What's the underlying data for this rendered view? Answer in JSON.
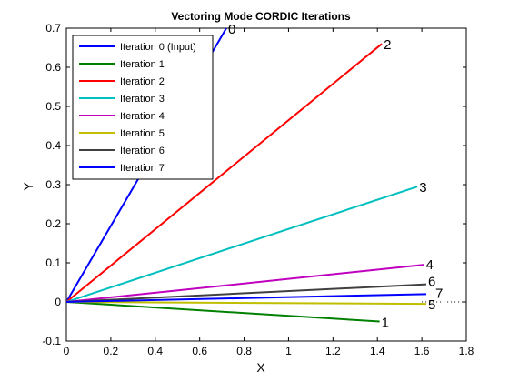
{
  "chart_data": {
    "type": "line",
    "title": "Vectoring Mode CORDIC Iterations",
    "xlabel": "X",
    "ylabel": "Y",
    "xlim": [
      0,
      1.8
    ],
    "ylim": [
      -0.1,
      0.7
    ],
    "xticks": [
      "0",
      "0.2",
      "0.4",
      "0.6",
      "0.8",
      "1",
      "1.2",
      "1.4",
      "1.6",
      "1.8"
    ],
    "yticks": [
      "-0.1",
      "0",
      "0.1",
      "0.2",
      "0.3",
      "0.4",
      "0.5",
      "0.6",
      "0.7"
    ],
    "grid": false,
    "legend_position": "top-left",
    "reference_line": {
      "y": 0,
      "style": "dotted",
      "x_from": 1.6,
      "x_to": 1.8
    },
    "series": [
      {
        "name": "Iteration 0 (Input)",
        "color": "#0000ff",
        "x": [
          0,
          0.72
        ],
        "y": [
          0,
          0.7
        ],
        "label": "0"
      },
      {
        "name": "Iteration 1",
        "color": "#008000",
        "x": [
          0,
          1.41
        ],
        "y": [
          0,
          -0.05
        ],
        "label": "1"
      },
      {
        "name": "Iteration 2",
        "color": "#ff0000",
        "x": [
          0,
          1.42
        ],
        "y": [
          0,
          0.66
        ],
        "label": "2"
      },
      {
        "name": "Iteration 3",
        "color": "#00bfbf",
        "x": [
          0,
          1.58
        ],
        "y": [
          0,
          0.295
        ],
        "label": "3"
      },
      {
        "name": "Iteration 4",
        "color": "#bf00bf",
        "x": [
          0,
          1.61
        ],
        "y": [
          0,
          0.095
        ],
        "label": "4"
      },
      {
        "name": "Iteration 5",
        "color": "#bfbf00",
        "x": [
          0,
          1.62
        ],
        "y": [
          0,
          -0.005
        ],
        "label": "5"
      },
      {
        "name": "Iteration 6",
        "color": "#404040",
        "x": [
          0,
          1.62
        ],
        "y": [
          0,
          0.045
        ],
        "label": "6"
      },
      {
        "name": "Iteration 7",
        "color": "#0000ff",
        "x": [
          0,
          1.62
        ],
        "y": [
          0,
          0.02
        ],
        "label": "7"
      }
    ]
  }
}
